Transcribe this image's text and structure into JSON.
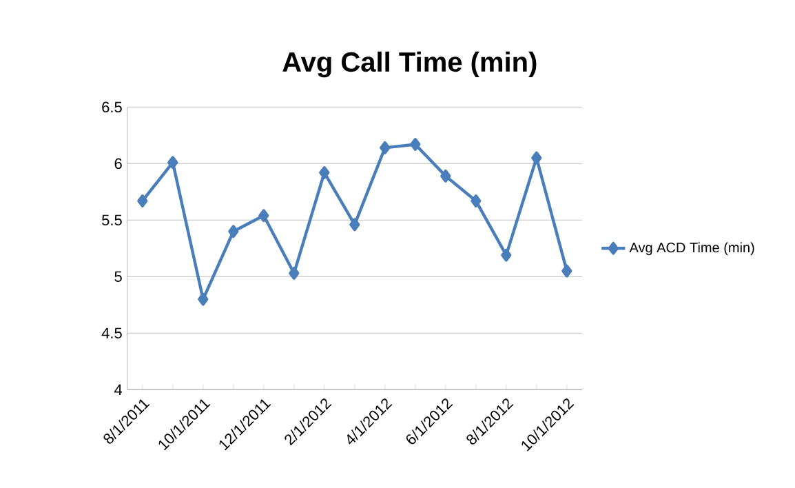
{
  "chart_data": {
    "type": "line",
    "title": "Avg Call Time (min)",
    "categories": [
      "8/1/2011",
      null,
      "10/1/2011",
      null,
      "12/1/2011",
      null,
      "2/1/2012",
      null,
      "4/1/2012",
      null,
      "6/1/2012",
      null,
      "8/1/2012",
      null,
      "10/1/2012"
    ],
    "series": [
      {
        "name": "Avg ACD Time (min)",
        "color": "#4a7ebb",
        "values": [
          5.67,
          6.01,
          4.8,
          5.4,
          5.54,
          5.03,
          5.92,
          5.46,
          6.14,
          6.17,
          5.89,
          5.67,
          5.19,
          6.05,
          5.05
        ]
      }
    ],
    "ylim": [
      4,
      6.5
    ],
    "yticks": [
      4,
      4.5,
      5,
      5.5,
      6,
      6.5
    ],
    "grid": "y",
    "legend": "right",
    "marker": "diamond",
    "line_style": "solid"
  }
}
